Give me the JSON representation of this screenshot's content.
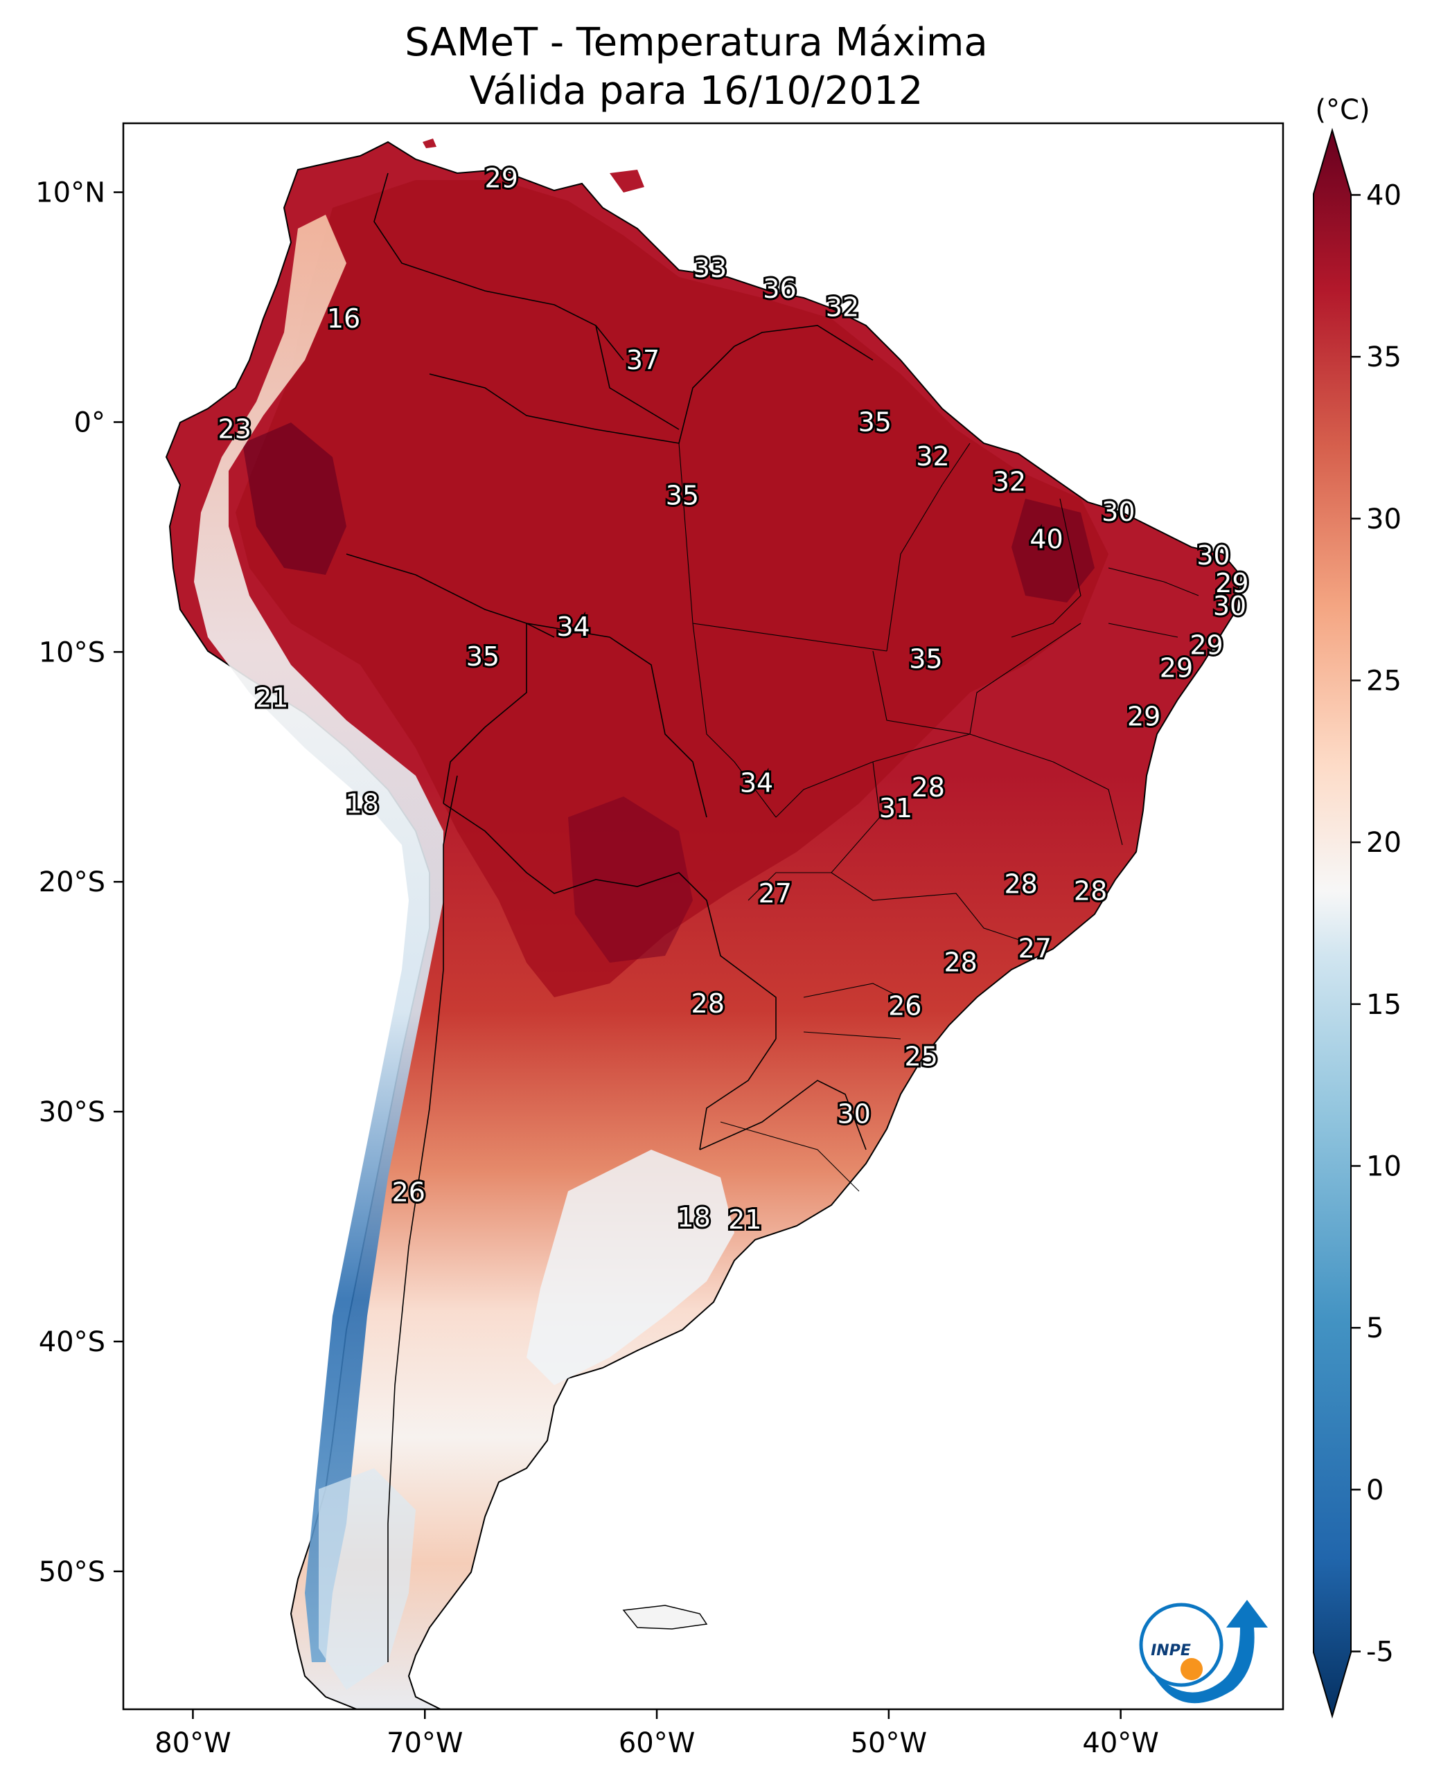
{
  "title_line1": "SAMeT - Temperatura Máxima",
  "title_line2": "Válida para 16/10/2012",
  "colorbar": {
    "unit": "(°C)",
    "min": -7,
    "max": 42,
    "ticks": [
      "40",
      "35",
      "30",
      "25",
      "20",
      "15",
      "10",
      "5",
      "0",
      "-5"
    ],
    "tick_values": [
      40,
      35,
      30,
      25,
      20,
      15,
      10,
      5,
      0,
      -5
    ]
  },
  "lat_ticks": [
    "10°N",
    "0°",
    "10°S",
    "20°S",
    "30°S",
    "40°S",
    "50°S"
  ],
  "lon_ticks": [
    "80°W",
    "70°W",
    "60°W",
    "50°W",
    "40°W"
  ],
  "extent": {
    "lon": [
      -83,
      -33
    ],
    "lat": [
      -56,
      13
    ]
  },
  "logo": {
    "text": "INPE",
    "colors": [
      "#0b76c2",
      "#f7941d"
    ]
  },
  "point_labels": [
    {
      "text": "29",
      "lon": -66.7,
      "lat": 10.6
    },
    {
      "text": "33",
      "lon": -57.7,
      "lat": 6.7
    },
    {
      "text": "36",
      "lon": -54.7,
      "lat": 5.8
    },
    {
      "text": "32",
      "lon": -52.0,
      "lat": 5.0
    },
    {
      "text": "16",
      "lon": -73.5,
      "lat": 4.5
    },
    {
      "text": "37",
      "lon": -60.6,
      "lat": 2.7
    },
    {
      "text": "35",
      "lon": -50.6,
      "lat": 0.0
    },
    {
      "text": "23",
      "lon": -78.2,
      "lat": -0.3
    },
    {
      "text": "32",
      "lon": -48.1,
      "lat": -1.5
    },
    {
      "text": "32",
      "lon": -44.8,
      "lat": -2.6
    },
    {
      "text": "35",
      "lon": -58.9,
      "lat": -3.2
    },
    {
      "text": "30",
      "lon": -40.1,
      "lat": -3.9
    },
    {
      "text": "40",
      "lon": -43.2,
      "lat": -5.1
    },
    {
      "text": "30",
      "lon": -36.0,
      "lat": -5.8
    },
    {
      "text": "29",
      "lon": -35.2,
      "lat": -7.0
    },
    {
      "text": "30",
      "lon": -35.3,
      "lat": -8.0
    },
    {
      "text": "34",
      "lon": -63.6,
      "lat": -8.9
    },
    {
      "text": "29",
      "lon": -36.3,
      "lat": -9.7
    },
    {
      "text": "35",
      "lon": -67.5,
      "lat": -10.2
    },
    {
      "text": "35",
      "lon": -48.4,
      "lat": -10.3
    },
    {
      "text": "29",
      "lon": -37.6,
      "lat": -10.7
    },
    {
      "text": "21",
      "lon": -76.6,
      "lat": -12.0
    },
    {
      "text": "29",
      "lon": -39.0,
      "lat": -12.8
    },
    {
      "text": "34",
      "lon": -55.7,
      "lat": -15.7
    },
    {
      "text": "28",
      "lon": -48.3,
      "lat": -15.9
    },
    {
      "text": "31",
      "lon": -49.7,
      "lat": -16.8
    },
    {
      "text": "18",
      "lon": -72.7,
      "lat": -16.6
    },
    {
      "text": "28",
      "lon": -44.3,
      "lat": -20.1
    },
    {
      "text": "27",
      "lon": -54.9,
      "lat": -20.5
    },
    {
      "text": "28",
      "lon": -41.3,
      "lat": -20.4
    },
    {
      "text": "27",
      "lon": -43.7,
      "lat": -22.9
    },
    {
      "text": "28",
      "lon": -46.9,
      "lat": -23.5
    },
    {
      "text": "28",
      "lon": -57.8,
      "lat": -25.3
    },
    {
      "text": "26",
      "lon": -49.3,
      "lat": -25.4
    },
    {
      "text": "25",
      "lon": -48.6,
      "lat": -27.6
    },
    {
      "text": "30",
      "lon": -51.5,
      "lat": -30.1
    },
    {
      "text": "26",
      "lon": -70.7,
      "lat": -33.5
    },
    {
      "text": "18",
      "lon": -58.4,
      "lat": -34.6
    },
    {
      "text": "21",
      "lon": -56.2,
      "lat": -34.7
    }
  ]
}
